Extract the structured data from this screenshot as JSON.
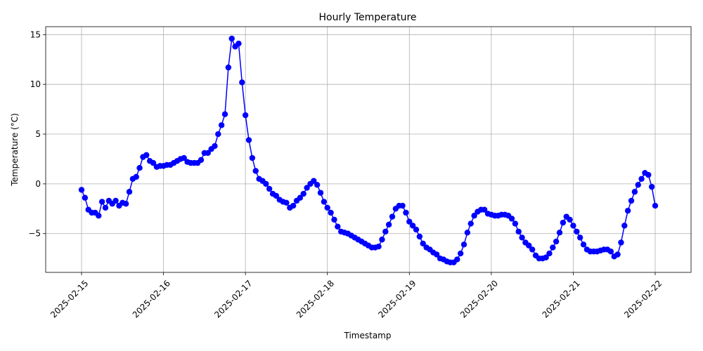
{
  "chart_data": {
    "type": "line",
    "title": "Hourly Temperature",
    "xlabel": "Timestamp",
    "ylabel": "Temperature (°C)",
    "grid": true,
    "x_tick_labels": [
      "2025-02-15",
      "2025-02-16",
      "2025-02-17",
      "2025-02-18",
      "2025-02-19",
      "2025-02-20",
      "2025-02-21",
      "2025-02-22"
    ],
    "y_ticks": [
      -5,
      0,
      5,
      10,
      15
    ],
    "y_tick_labels": [
      "−5",
      "0",
      "5",
      "10",
      "15"
    ],
    "xlim": [
      "2025-02-14 13:30",
      "2025-02-22 10:30"
    ],
    "ylim": [
      -8.9,
      15.8
    ],
    "x_interval_hours": 1,
    "x_start": "2025-02-15 00:00",
    "series": [
      {
        "color": "#0000ff",
        "marker": "circle",
        "values": [
          -0.6,
          -1.4,
          -2.6,
          -2.9,
          -2.9,
          -3.2,
          -1.8,
          -2.4,
          -1.7,
          -2.0,
          -1.7,
          -2.2,
          -1.9,
          -2.0,
          -0.8,
          0.5,
          0.7,
          1.6,
          2.7,
          2.9,
          2.3,
          2.1,
          1.7,
          1.8,
          1.8,
          1.9,
          1.9,
          2.1,
          2.3,
          2.5,
          2.6,
          2.2,
          2.1,
          2.1,
          2.1,
          2.4,
          3.1,
          3.1,
          3.5,
          3.8,
          5.0,
          5.9,
          7.0,
          11.7,
          14.6,
          13.8,
          14.1,
          10.2,
          6.9,
          4.4,
          2.6,
          1.3,
          0.5,
          0.3,
          0.0,
          -0.5,
          -1.0,
          -1.2,
          -1.6,
          -1.8,
          -1.9,
          -2.4,
          -2.2,
          -1.7,
          -1.4,
          -1.0,
          -0.4,
          0.0,
          0.3,
          -0.1,
          -0.9,
          -1.8,
          -2.4,
          -2.9,
          -3.6,
          -4.3,
          -4.8,
          -4.9,
          -5.0,
          -5.2,
          -5.4,
          -5.6,
          -5.8,
          -6.0,
          -6.2,
          -6.4,
          -6.4,
          -6.3,
          -5.6,
          -4.8,
          -4.1,
          -3.3,
          -2.5,
          -2.2,
          -2.2,
          -2.9,
          -3.8,
          -4.2,
          -4.6,
          -5.3,
          -6.0,
          -6.4,
          -6.6,
          -6.9,
          -7.1,
          -7.5,
          -7.6,
          -7.8,
          -7.9,
          -7.9,
          -7.6,
          -7.0,
          -6.1,
          -4.9,
          -4.0,
          -3.2,
          -2.8,
          -2.6,
          -2.6,
          -3.0,
          -3.1,
          -3.2,
          -3.2,
          -3.1,
          -3.1,
          -3.2,
          -3.5,
          -4.0,
          -4.8,
          -5.4,
          -5.9,
          -6.2,
          -6.6,
          -7.2,
          -7.5,
          -7.5,
          -7.4,
          -7.0,
          -6.4,
          -5.8,
          -4.9,
          -3.9,
          -3.3,
          -3.6,
          -4.2,
          -4.8,
          -5.4,
          -6.1,
          -6.6,
          -6.8,
          -6.8,
          -6.8,
          -6.7,
          -6.6,
          -6.6,
          -6.8,
          -7.3,
          -7.1,
          -5.9,
          -4.2,
          -2.7,
          -1.7,
          -0.8,
          -0.1,
          0.5,
          1.1,
          0.9,
          -0.3,
          -2.2
        ]
      }
    ]
  }
}
